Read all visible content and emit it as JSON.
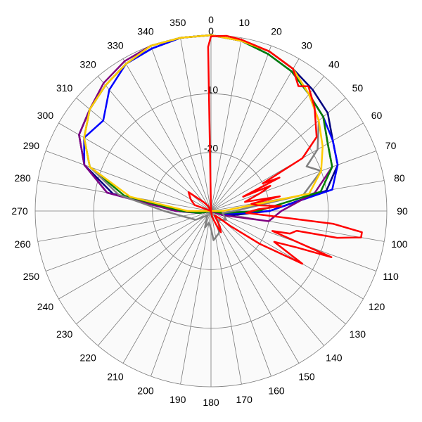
{
  "chart_data": {
    "type": "polar",
    "title": "",
    "angular_axis": {
      "ticks": [
        "0",
        "10",
        "20",
        "30",
        "40",
        "50",
        "60",
        "70",
        "80",
        "90",
        "100",
        "110",
        "120",
        "130",
        "140",
        "150",
        "160",
        "170",
        "180",
        "190",
        "200",
        "210",
        "220",
        "230",
        "240",
        "250",
        "260",
        "270",
        "280",
        "290",
        "300",
        "310",
        "320",
        "330",
        "340",
        "350"
      ],
      "direction": "clockwise",
      "zero_at": "top"
    },
    "radial_axis": {
      "range": [
        -30,
        0
      ],
      "ticks": [
        "0",
        "-10",
        "-20"
      ],
      "tick_values": [
        0,
        -10,
        -20
      ],
      "unit": ""
    },
    "grid": true,
    "background": "#fafafa",
    "series": [
      {
        "color": "#00007f",
        "points": [
          [
            0,
            0
          ],
          [
            10,
            -0.5
          ],
          [
            20,
            -1
          ],
          [
            30,
            -2
          ],
          [
            40,
            -3
          ],
          [
            50,
            -4
          ],
          [
            60,
            -6
          ],
          [
            70,
            -7
          ],
          [
            80,
            -10
          ],
          [
            90,
            -20
          ],
          [
            100,
            -26
          ],
          [
            110,
            -29
          ],
          [
            120,
            -30
          ],
          [
            180,
            -30
          ],
          [
            240,
            -30
          ],
          [
            260,
            -29
          ],
          [
            270,
            -25
          ],
          [
            280,
            -13
          ],
          [
            290,
            -7
          ],
          [
            300,
            -4
          ],
          [
            310,
            -3
          ],
          [
            320,
            -2
          ],
          [
            330,
            -1
          ],
          [
            340,
            -0.5
          ],
          [
            350,
            0
          ]
        ]
      },
      {
        "color": "#0000ff",
        "points": [
          [
            0,
            0
          ],
          [
            10,
            -0.5
          ],
          [
            20,
            -1.5
          ],
          [
            30,
            -2.5
          ],
          [
            40,
            -4
          ],
          [
            50,
            -5
          ],
          [
            60,
            -6
          ],
          [
            70,
            -7
          ],
          [
            80,
            -9
          ],
          [
            90,
            -20
          ],
          [
            100,
            -27
          ],
          [
            110,
            -30
          ],
          [
            250,
            -30
          ],
          [
            260,
            -28
          ],
          [
            270,
            -24
          ],
          [
            280,
            -12
          ],
          [
            290,
            -7
          ],
          [
            300,
            -5
          ],
          [
            310,
            -6
          ],
          [
            320,
            -3
          ],
          [
            330,
            -1
          ],
          [
            340,
            -0.5
          ],
          [
            350,
            0
          ]
        ]
      },
      {
        "color": "#800080",
        "points": [
          [
            0,
            0
          ],
          [
            10,
            -0.5
          ],
          [
            20,
            -1
          ],
          [
            30,
            -2
          ],
          [
            40,
            -4
          ],
          [
            50,
            -5
          ],
          [
            60,
            -7
          ],
          [
            70,
            -8
          ],
          [
            80,
            -12
          ],
          [
            90,
            -18
          ],
          [
            100,
            -20
          ],
          [
            110,
            -28
          ],
          [
            120,
            -30
          ],
          [
            240,
            -30
          ],
          [
            260,
            -28
          ],
          [
            270,
            -24
          ],
          [
            280,
            -12
          ],
          [
            290,
            -7
          ],
          [
            300,
            -4
          ],
          [
            310,
            -3
          ],
          [
            320,
            -1.5
          ],
          [
            330,
            -0.5
          ],
          [
            340,
            0
          ],
          [
            350,
            0
          ]
        ]
      },
      {
        "color": "#008000",
        "points": [
          [
            0,
            0
          ],
          [
            10,
            -0.5
          ],
          [
            20,
            -1.5
          ],
          [
            30,
            -2.5
          ],
          [
            40,
            -4
          ],
          [
            50,
            -5
          ],
          [
            60,
            -7
          ],
          [
            70,
            -8
          ],
          [
            80,
            -11
          ],
          [
            90,
            -22
          ],
          [
            100,
            -28
          ],
          [
            110,
            -30
          ],
          [
            250,
            -30
          ],
          [
            260,
            -28
          ],
          [
            270,
            -25
          ],
          [
            280,
            -15
          ],
          [
            290,
            -8
          ],
          [
            300,
            -5
          ],
          [
            310,
            -3
          ],
          [
            320,
            -2
          ],
          [
            330,
            -1
          ],
          [
            340,
            0
          ],
          [
            350,
            0
          ]
        ]
      },
      {
        "color": "#808080",
        "points": [
          [
            0,
            0
          ],
          [
            10,
            -0.5
          ],
          [
            20,
            -1
          ],
          [
            30,
            -2
          ],
          [
            40,
            -4
          ],
          [
            50,
            -6
          ],
          [
            60,
            -9
          ],
          [
            65,
            -12
          ],
          [
            70,
            -10
          ],
          [
            80,
            -14
          ],
          [
            90,
            -26
          ],
          [
            100,
            -28
          ],
          [
            120,
            -27
          ],
          [
            140,
            -28
          ],
          [
            160,
            -26
          ],
          [
            175,
            -25
          ],
          [
            180,
            -27
          ],
          [
            190,
            -28
          ],
          [
            200,
            -27
          ],
          [
            220,
            -29
          ],
          [
            240,
            -27
          ],
          [
            260,
            -25
          ],
          [
            270,
            -22
          ],
          [
            280,
            -14
          ],
          [
            290,
            -8
          ],
          [
            300,
            -5
          ],
          [
            310,
            -3
          ],
          [
            320,
            -2
          ],
          [
            330,
            -1
          ],
          [
            340,
            0
          ],
          [
            350,
            0
          ]
        ]
      },
      {
        "color": "#ffcc00",
        "points": [
          [
            0,
            0
          ],
          [
            10,
            -0.5
          ],
          [
            20,
            -1
          ],
          [
            30,
            -2
          ],
          [
            40,
            -4
          ],
          [
            50,
            -6
          ],
          [
            60,
            -8
          ],
          [
            70,
            -10
          ],
          [
            80,
            -13
          ],
          [
            90,
            -28
          ],
          [
            100,
            -30
          ],
          [
            260,
            -30
          ],
          [
            270,
            -26
          ],
          [
            280,
            -16
          ],
          [
            290,
            -8
          ],
          [
            300,
            -5
          ],
          [
            310,
            -3
          ],
          [
            320,
            -2
          ],
          [
            330,
            -1
          ],
          [
            340,
            0
          ],
          [
            350,
            0
          ]
        ]
      },
      {
        "color": "#ff0000",
        "points": [
          [
            0,
            -0.2
          ],
          [
            5,
            0
          ],
          [
            10,
            -0.3
          ],
          [
            20,
            -1
          ],
          [
            30,
            -2
          ],
          [
            35,
            -4
          ],
          [
            38,
            -3
          ],
          [
            45,
            -5
          ],
          [
            55,
            -8
          ],
          [
            60,
            -12
          ],
          [
            62,
            -20
          ],
          [
            64,
            -17
          ],
          [
            66,
            -24
          ],
          [
            67,
            -19
          ],
          [
            70,
            -21
          ],
          [
            75,
            -24
          ],
          [
            78,
            -18
          ],
          [
            80,
            -23
          ],
          [
            83,
            -22
          ],
          [
            86,
            -18
          ],
          [
            88,
            -22
          ],
          [
            90,
            -23
          ],
          [
            93,
            -24
          ],
          [
            96,
            -9
          ],
          [
            98,
            -4
          ],
          [
            100,
            -4
          ],
          [
            102,
            -8
          ],
          [
            103,
            -15
          ],
          [
            106,
            -16
          ],
          [
            108,
            -19
          ],
          [
            111,
            -8
          ],
          [
            113,
            -14
          ],
          [
            116,
            -18
          ],
          [
            120,
            -12
          ],
          [
            124,
            -20
          ],
          [
            128,
            -26
          ],
          [
            130,
            -28
          ],
          [
            140,
            -29
          ],
          [
            150,
            -27
          ],
          [
            155,
            -26
          ],
          [
            158,
            -27
          ],
          [
            170,
            -29
          ],
          [
            180,
            -30
          ],
          [
            270,
            -30
          ],
          [
            290,
            -27
          ],
          [
            300,
            -26
          ],
          [
            310,
            -25
          ],
          [
            320,
            -28
          ],
          [
            330,
            -29
          ],
          [
            340,
            -30
          ],
          [
            350,
            -30
          ],
          [
            355,
            -30
          ],
          [
            359,
            -2
          ]
        ]
      }
    ]
  }
}
